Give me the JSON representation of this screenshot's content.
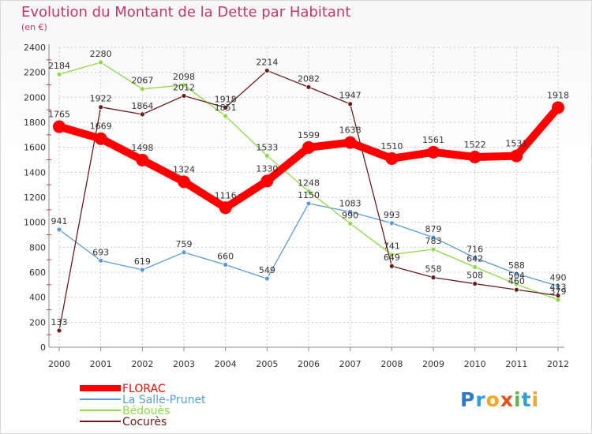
{
  "title": "Evolution du Montant de la Dette par Habitant",
  "unit": "(en €)",
  "logo": "Proxiti",
  "colors": {
    "title": "#c2366a",
    "grid": "#c8c8c8"
  },
  "chart_data": {
    "type": "line",
    "title": "Evolution du Montant de la Dette par Habitant",
    "ylabel": "(en €)",
    "xlabel": "",
    "x": [
      "2000",
      "2001",
      "2002",
      "2003",
      "2004",
      "2005",
      "2006",
      "2007",
      "2008",
      "2009",
      "2010",
      "2011",
      "2012"
    ],
    "ylim": [
      0,
      2400
    ],
    "yticks": [
      0,
      200,
      400,
      600,
      800,
      1000,
      1200,
      1400,
      1600,
      1800,
      2000,
      2200,
      2400
    ],
    "grid": true,
    "legend_position": "bottom-left",
    "series": [
      {
        "name": "FLORAC",
        "color": "#ff0000",
        "values": [
          1765,
          1669,
          1498,
          1324,
          1116,
          1330,
          1599,
          1638,
          1510,
          1561,
          1522,
          1531,
          1918
        ]
      },
      {
        "name": "La Salle-Prunet",
        "color": "#5b9bd5",
        "values": [
          941,
          693,
          619,
          759,
          660,
          549,
          1150,
          1083,
          993,
          879,
          716,
          588,
          490
        ]
      },
      {
        "name": "Bédouès",
        "color": "#8ed84a",
        "values": [
          2184,
          2280,
          2067,
          2098,
          1851,
          1533,
          1248,
          990,
          741,
          783,
          642,
          504,
          379
        ]
      },
      {
        "name": "Cocurès",
        "color": "#6b1c1c",
        "values": [
          133,
          1922,
          1864,
          2012,
          1918,
          2214,
          2082,
          1947,
          649,
          558,
          508,
          460,
          413
        ]
      }
    ]
  }
}
